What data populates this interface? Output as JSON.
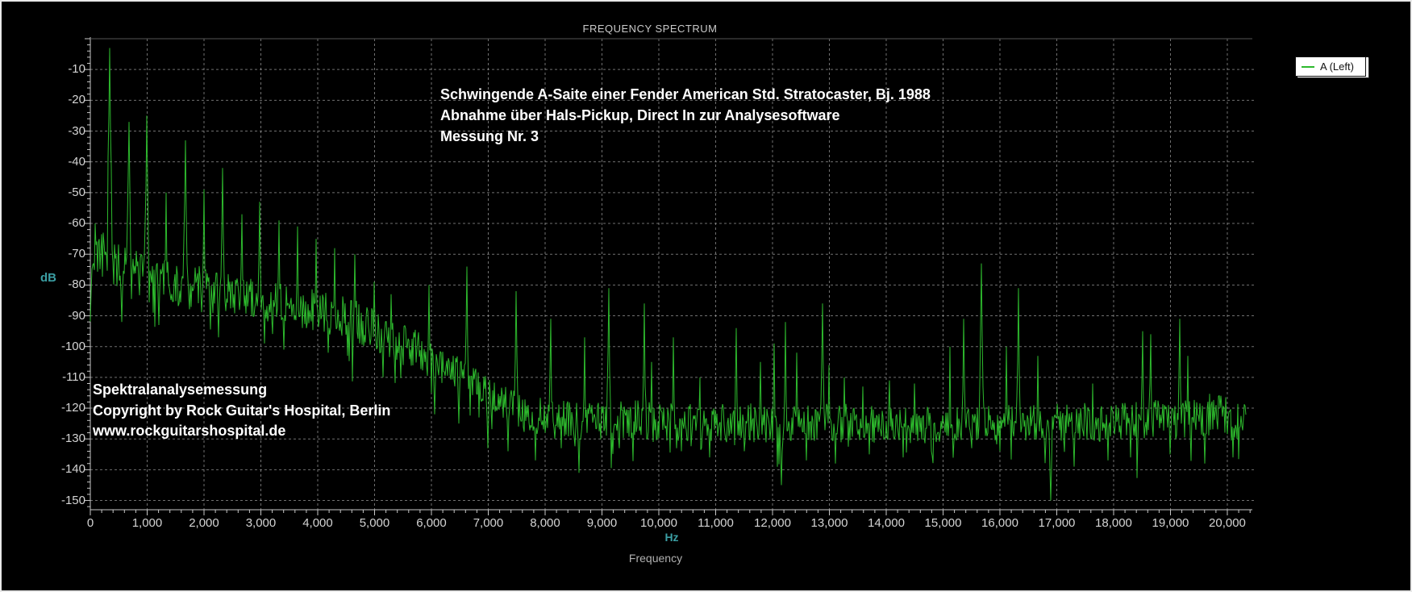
{
  "header": {
    "title": "FREQUENCY SPECTRUM"
  },
  "legend": {
    "entries": [
      {
        "label": "A (Left)",
        "color": "#2db92d"
      }
    ]
  },
  "annotation": {
    "lines": [
      "Schwingende A-Saite einer Fender American Std. Stratocaster, Bj. 1988",
      "Abnahme über Hals-Pickup, Direct In zur Analysesoftware",
      "Messung Nr. 3"
    ]
  },
  "watermark": {
    "lines": [
      "Spektralanalysemessung",
      "Copyright by Rock Guitar's Hospital, Berlin",
      "www.rockguitarshospital.de"
    ]
  },
  "axes": {
    "y_label": "dB",
    "x_unit": "Hz",
    "x_label": "Frequency"
  },
  "chart_data": {
    "type": "line",
    "title": "FREQUENCY SPECTRUM",
    "xlabel": "Frequency",
    "x_unit": "Hz",
    "ylabel": "dB",
    "xlim": [
      0,
      20440
    ],
    "ylim": [
      -153,
      0
    ],
    "grid": {
      "style": "dashed",
      "color": "#a0a0a0"
    },
    "legend_position": "top-right",
    "x_major_tick_hz": 1000,
    "x_minor_tick_hz": 200,
    "y_major_tick_db": 10,
    "y_minor_tick_db": 2,
    "x_tick_labels": [
      {
        "value": 0,
        "label": "0"
      },
      {
        "value": 1000,
        "label": "1,000"
      },
      {
        "value": 2000,
        "label": "2,000"
      },
      {
        "value": 3000,
        "label": "3,000"
      },
      {
        "value": 4000,
        "label": "4,000"
      },
      {
        "value": 5000,
        "label": "5,000"
      },
      {
        "value": 6000,
        "label": "6,000"
      },
      {
        "value": 7000,
        "label": "7,000"
      },
      {
        "value": 8000,
        "label": "8,000"
      },
      {
        "value": 9000,
        "label": "9,000"
      },
      {
        "value": 10000,
        "label": "10,000"
      },
      {
        "value": 11000,
        "label": "11,000"
      },
      {
        "value": 12000,
        "label": "12,000"
      },
      {
        "value": 13000,
        "label": "13,000"
      },
      {
        "value": 14000,
        "label": "14,000"
      },
      {
        "value": 15000,
        "label": "15,000"
      },
      {
        "value": 16000,
        "label": "16,000"
      },
      {
        "value": 17000,
        "label": "17,000"
      },
      {
        "value": 18000,
        "label": "18,000"
      },
      {
        "value": 19000,
        "label": "19,000"
      },
      {
        "value": 20000,
        "label": "20,000"
      }
    ],
    "y_tick_labels": [
      {
        "value": -10,
        "label": "-10"
      },
      {
        "value": -20,
        "label": "-20"
      },
      {
        "value": -30,
        "label": "-30"
      },
      {
        "value": -40,
        "label": "-40"
      },
      {
        "value": -50,
        "label": "-50"
      },
      {
        "value": -60,
        "label": "-60"
      },
      {
        "value": -70,
        "label": "-70"
      },
      {
        "value": -80,
        "label": "-80"
      },
      {
        "value": -90,
        "label": "-90"
      },
      {
        "value": -100,
        "label": "-100"
      },
      {
        "value": -110,
        "label": "-110"
      },
      {
        "value": -120,
        "label": "-120"
      },
      {
        "value": -130,
        "label": "-130"
      },
      {
        "value": -140,
        "label": "-140"
      },
      {
        "value": -150,
        "label": "-150"
      }
    ],
    "series": [
      {
        "name": "A (Left)",
        "color": "#2db92d",
        "x_end_hz": 20330,
        "synthesis": {
          "seed": 20121988,
          "noise_floor_envelope_hz_db": [
            [
              0,
              -85
            ],
            [
              40,
              -76
            ],
            [
              100,
              -71
            ],
            [
              250,
              -72
            ],
            [
              450,
              -75
            ],
            [
              700,
              -77
            ],
            [
              1000,
              -78
            ],
            [
              1400,
              -80
            ],
            [
              2000,
              -82
            ],
            [
              2600,
              -84
            ],
            [
              3200,
              -86
            ],
            [
              3800,
              -88
            ],
            [
              4300,
              -90
            ],
            [
              4800,
              -93
            ],
            [
              5300,
              -98
            ],
            [
              5800,
              -102
            ],
            [
              6300,
              -107
            ],
            [
              6800,
              -112
            ],
            [
              7200,
              -118
            ],
            [
              7600,
              -122
            ],
            [
              8200,
              -124
            ],
            [
              9500,
              -124
            ],
            [
              11000,
              -125
            ],
            [
              13000,
              -125
            ],
            [
              15000,
              -126
            ],
            [
              16500,
              -125
            ],
            [
              18000,
              -125
            ],
            [
              19000,
              -124
            ],
            [
              19800,
              -122
            ],
            [
              20440,
              -127
            ]
          ],
          "noise_amplitude_envelope_hz_db": [
            [
              0,
              8.5
            ],
            [
              1000,
              8
            ],
            [
              3000,
              7
            ],
            [
              5000,
              7
            ],
            [
              7000,
              6
            ],
            [
              9000,
              6.5
            ],
            [
              12000,
              6.5
            ],
            [
              15000,
              6
            ],
            [
              18000,
              6.5
            ],
            [
              20440,
              7
            ]
          ],
          "down_spike_probability": 0.05,
          "down_spike_max_db": 14,
          "harmonic_peaks_hz_db": [
            [
              90,
              -60
            ],
            [
              230,
              -63
            ],
            [
              340,
              -3
            ],
            [
              680,
              -27
            ],
            [
              1000,
              -25
            ],
            [
              1330,
              -50
            ],
            [
              1670,
              -33
            ],
            [
              2000,
              -49
            ],
            [
              2330,
              -42
            ],
            [
              2670,
              -57
            ],
            [
              2980,
              -53
            ],
            [
              3320,
              -59
            ],
            [
              3650,
              -61
            ],
            [
              3970,
              -65
            ],
            [
              4300,
              -68
            ],
            [
              4650,
              -70
            ],
            [
              5000,
              -79
            ],
            [
              5290,
              -83
            ],
            [
              5960,
              -80
            ],
            [
              6620,
              -74
            ],
            [
              7490,
              -82
            ],
            [
              8100,
              -91
            ],
            [
              8700,
              -97
            ],
            [
              9120,
              -81
            ],
            [
              9750,
              -86
            ],
            [
              9870,
              -105
            ],
            [
              10250,
              -97
            ],
            [
              10720,
              -110
            ],
            [
              11360,
              -94
            ],
            [
              11790,
              -105
            ],
            [
              12030,
              -99
            ],
            [
              12230,
              -92
            ],
            [
              12430,
              -102
            ],
            [
              12880,
              -86
            ],
            [
              12990,
              -106
            ],
            [
              13260,
              -110
            ],
            [
              13590,
              -113
            ],
            [
              14060,
              -111
            ],
            [
              14500,
              -112
            ],
            [
              15120,
              -100
            ],
            [
              15360,
              -91
            ],
            [
              15670,
              -73
            ],
            [
              16110,
              -100
            ],
            [
              16330,
              -81
            ],
            [
              16660,
              -103
            ],
            [
              17630,
              -112
            ],
            [
              18510,
              -95
            ],
            [
              18650,
              -96
            ],
            [
              19160,
              -91
            ],
            [
              19300,
              -103
            ],
            [
              19800,
              -119
            ]
          ],
          "notches_hz_db": [
            [
              560,
              -92
            ],
            [
              1210,
              -93
            ],
            [
              2250,
              -97
            ],
            [
              3060,
              -99
            ],
            [
              3400,
              -101
            ],
            [
              4180,
              -102
            ],
            [
              4520,
              -103
            ],
            [
              5150,
              -110
            ],
            [
              6050,
              -122
            ],
            [
              6480,
              -125
            ],
            [
              7000,
              -133
            ],
            [
              7350,
              -134
            ],
            [
              7830,
              -137
            ],
            [
              8280,
              -133
            ],
            [
              8600,
              -141
            ],
            [
              9300,
              -133
            ],
            [
              9900,
              -131
            ],
            [
              10400,
              -134
            ],
            [
              10900,
              -136
            ],
            [
              11500,
              -134
            ],
            [
              12150,
              -145
            ],
            [
              12600,
              -137
            ],
            [
              13100,
              -138
            ],
            [
              13700,
              -135
            ],
            [
              14300,
              -136
            ],
            [
              14800,
              -134
            ],
            [
              15500,
              -133
            ],
            [
              16000,
              -134
            ],
            [
              16900,
              -150
            ],
            [
              17300,
              -139
            ],
            [
              17900,
              -137
            ],
            [
              18300,
              -136
            ],
            [
              19000,
              -135
            ],
            [
              19600,
              -138
            ],
            [
              20100,
              -136
            ],
            [
              20350,
              -141
            ]
          ]
        }
      }
    ]
  }
}
